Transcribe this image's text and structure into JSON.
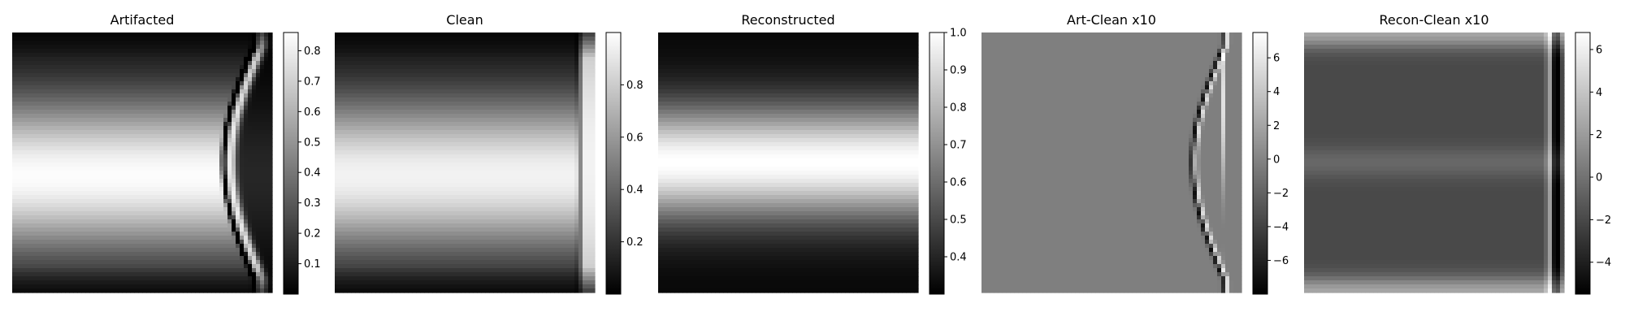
{
  "figure": {
    "background": "#ffffff",
    "colormap": "gray"
  },
  "chart_data": [
    {
      "type": "heatmap",
      "title": "Artifacted",
      "colorbar": {
        "vmin": 0.0,
        "vmax": 0.86,
        "ticks": [
          0.1,
          0.2,
          0.3,
          0.4,
          0.5,
          0.6,
          0.7,
          0.8
        ],
        "tick_labels": [
          "0.1",
          "0.2",
          "0.3",
          "0.4",
          "0.5",
          "0.6",
          "0.7",
          "0.8"
        ]
      },
      "profile": {
        "base": 0.03,
        "peak": 0.85,
        "center_row": 0.55,
        "width": 0.3
      },
      "feature": {
        "kind": "s-curve",
        "col": 0.93,
        "amplitude": 0.12,
        "dark_band": true
      }
    },
    {
      "type": "heatmap",
      "title": "Clean",
      "colorbar": {
        "vmin": 0.0,
        "vmax": 1.0,
        "ticks": [
          0.2,
          0.4,
          0.6,
          0.8
        ],
        "tick_labels": [
          "0.2",
          "0.4",
          "0.6",
          "0.8"
        ]
      },
      "profile": {
        "base": 0.03,
        "peak": 0.95,
        "center_row": 0.55,
        "width": 0.3
      },
      "feature": {
        "kind": "edge",
        "col": 0.94,
        "dark_band": true
      }
    },
    {
      "type": "heatmap",
      "title": "Reconstructed",
      "colorbar": {
        "vmin": 0.3,
        "vmax": 1.0,
        "ticks": [
          0.4,
          0.5,
          0.6,
          0.7,
          0.8,
          0.9,
          1.0
        ],
        "tick_labels": [
          "0.4",
          "0.5",
          "0.6",
          "0.7",
          "0.8",
          "0.9",
          "1.0"
        ]
      },
      "profile": {
        "base": 0.32,
        "peak": 1.0,
        "center_row": 0.5,
        "width": 0.22
      },
      "feature": {
        "kind": "none"
      }
    },
    {
      "type": "heatmap",
      "title": "Art-Clean x10",
      "colorbar": {
        "vmin": -8.0,
        "vmax": 7.5,
        "ticks": [
          -6,
          -4,
          -2,
          0,
          2,
          4,
          6
        ],
        "tick_labels": [
          "−6",
          "−4",
          "−2",
          "0",
          "2",
          "4",
          "6"
        ]
      },
      "profile": {
        "base": -0.2,
        "peak": 0.2,
        "center_row": 0.5,
        "width": 0.5
      },
      "feature": {
        "kind": "diff-s-curve",
        "col": 0.93,
        "amplitude": 0.12
      }
    },
    {
      "type": "heatmap",
      "title": "Recon-Clean x10",
      "colorbar": {
        "vmin": -5.5,
        "vmax": 6.8,
        "ticks": [
          -4,
          -2,
          0,
          2,
          4,
          6
        ],
        "tick_labels": [
          "−4",
          "−2",
          "0",
          "2",
          "4",
          "6"
        ]
      },
      "profile": {
        "base": -2.0,
        "peak": 1.0,
        "center_row": 0.5,
        "width": 0.15
      },
      "feature": {
        "kind": "diff-edge",
        "col": 0.94
      }
    }
  ]
}
